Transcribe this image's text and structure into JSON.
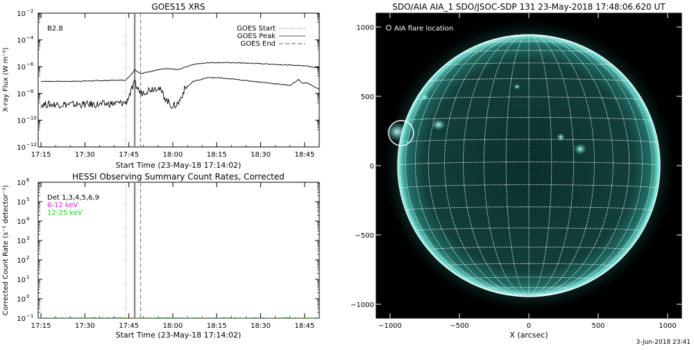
{
  "footer": {
    "date_stamp": "3-Jun-2018 23:41"
  },
  "chart_data": [
    {
      "type": "line",
      "title": "GOES15 XRS",
      "xlabel": "Start Time (23-May-18 17:14:02)",
      "ylabel": "X-ray Flux (W m⁻²)",
      "y_scale": "log",
      "xlim": [
        "17:14:02",
        "18:50"
      ],
      "ylim": [
        1e-12,
        0.01
      ],
      "x_ticks": [
        "17:15",
        "17:30",
        "17:45",
        "18:00",
        "18:15",
        "18:30",
        "18:45"
      ],
      "y_ticks": [
        {
          "value": 1e-12,
          "base": "10",
          "exp": "−12"
        },
        {
          "value": 1e-10,
          "base": "10",
          "exp": "−10"
        },
        {
          "value": 1e-08,
          "base": "10",
          "exp": "−8"
        },
        {
          "value": 1e-06,
          "base": "10",
          "exp": "−6"
        },
        {
          "value": 0.0001,
          "base": "10",
          "exp": "−4"
        },
        {
          "value": 0.01,
          "base": "10",
          "exp": "−2"
        }
      ],
      "annotation": "B2.8",
      "legend_position": "top-right",
      "legend": [
        {
          "label": "GOES Start",
          "style": "dotted"
        },
        {
          "label": "GOES Peak",
          "style": "solid"
        },
        {
          "label": "GOES End",
          "style": "dashed"
        }
      ],
      "event_times": {
        "start": "17:44",
        "peak": "17:47",
        "end": "17:49"
      },
      "series": [
        {
          "band": "long",
          "x": [
            "17:15",
            "17:25",
            "17:35",
            "17:44",
            "17:46",
            "17:47",
            "17:49",
            "17:55",
            "17:58",
            "18:02",
            "18:04",
            "18:07",
            "18:12",
            "18:15",
            "18:20",
            "18:30",
            "18:40",
            "18:45",
            "18:50"
          ],
          "y": [
            8e-08,
            8e-08,
            9e-08,
            1e-07,
            3e-07,
            6e-07,
            3e-07,
            6e-07,
            7e-07,
            6e-07,
            9e-07,
            1.5e-06,
            2e-06,
            2e-06,
            2e-06,
            1.7e-06,
            1.3e-06,
            1.2e-06,
            8e-07
          ]
        },
        {
          "band": "short",
          "x": [
            "17:15",
            "17:25",
            "17:35",
            "17:44",
            "17:46",
            "17:47",
            "17:49",
            "17:52",
            "17:55",
            "17:58",
            "18:00",
            "18:02",
            "18:04",
            "18:07",
            "18:12",
            "18:15",
            "18:20",
            "18:30",
            "18:40",
            "18:43",
            "18:44",
            "18:46",
            "18:50"
          ],
          "y": [
            1.5e-09,
            1.5e-09,
            1.5e-09,
            2e-09,
            2e-08,
            6e-08,
            1e-08,
            2e-08,
            3e-08,
            3e-09,
            1e-09,
            2e-09,
            2e-08,
            8e-08,
            1.5e-07,
            1.5e-07,
            1.2e-07,
            7e-08,
            4e-08,
            1.1e-07,
            6e-08,
            6e-08,
            2e-08
          ]
        }
      ]
    },
    {
      "type": "line",
      "title": "HESSI Observing Summary Count Rates, Corrected",
      "xlabel": "Start Time (23-May-18 17:14:02)",
      "ylabel": "Corrected Count Rate (s⁻¹ detector⁻¹)",
      "y_scale": "log",
      "xlim": [
        "17:14:02",
        "18:50"
      ],
      "ylim": [
        0.1,
        1000000.0
      ],
      "x_ticks": [
        "17:15",
        "17:30",
        "17:45",
        "18:00",
        "18:15",
        "18:30",
        "18:45"
      ],
      "y_ticks": [
        {
          "value": 0.1,
          "base": "10",
          "exp": "−1"
        },
        {
          "value": 1,
          "base": "10",
          "exp": "0"
        },
        {
          "value": 10,
          "base": "10",
          "exp": "1"
        },
        {
          "value": 100,
          "base": "10",
          "exp": "2"
        },
        {
          "value": 1000,
          "base": "10",
          "exp": "3"
        },
        {
          "value": 10000,
          "base": "10",
          "exp": "4"
        },
        {
          "value": 100000,
          "base": "10",
          "exp": "5"
        },
        {
          "value": 1000000,
          "base": "10",
          "exp": "6"
        }
      ],
      "legend_position": "top-left",
      "legend": [
        {
          "label": "Det 1,3,4,5,6,9",
          "color": "#000000"
        },
        {
          "label": "6-12 keV",
          "color": "#e020e0"
        },
        {
          "label": "12-25 keV",
          "color": "#20d020"
        }
      ],
      "event_times": {
        "start": "17:44",
        "peak": "17:47",
        "end": "17:49"
      },
      "series": [
        {
          "band": "12-25 keV",
          "color": "#20d020",
          "x": [
            "17:14:02",
            "18:50"
          ],
          "y": [
            0.1,
            0.1
          ]
        }
      ]
    },
    {
      "type": "image",
      "title": "SDO/AIA AIA_1 SDO/JSOC-SDP 131 23-May-2018 17:48:06.620 UT",
      "xlabel": "X (arcsec)",
      "ylabel": "",
      "xlim": [
        -1100,
        1100
      ],
      "ylim": [
        -1100,
        1100
      ],
      "x_ticks": [
        -1000,
        -500,
        0,
        500,
        1000
      ],
      "y_ticks": [
        -1000,
        -500,
        0,
        500,
        1000
      ],
      "grid": true,
      "grid_spacing_deg": 10,
      "solar_radius_arcsec": 945,
      "legend": [
        {
          "label": "AIA flare location",
          "marker": "circle"
        }
      ],
      "flare_location": {
        "x": -920,
        "y": 235,
        "radius": 90
      },
      "colors": {
        "disk": "#0f3a35",
        "limb": "#7ef5e8",
        "background": "#000000",
        "grid": "#ffffff"
      }
    }
  ]
}
